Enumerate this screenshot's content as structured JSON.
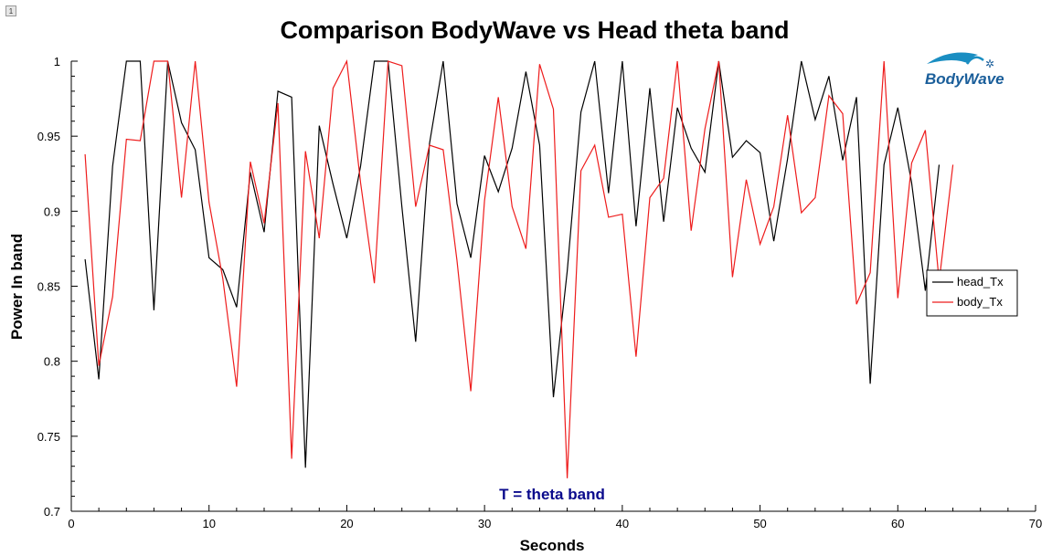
{
  "corner_button": {
    "label": "1"
  },
  "chart_data": {
    "type": "line",
    "title": "Comparison BodyWave vs Head theta band",
    "xlabel": "Seconds",
    "ylabel": "Power In band",
    "xlim": [
      0,
      70
    ],
    "ylim": [
      0.7,
      1.0
    ],
    "x_ticks": [
      0,
      10,
      20,
      30,
      40,
      50,
      60,
      70
    ],
    "y_ticks": [
      0.7,
      0.75,
      0.8,
      0.85,
      0.9,
      0.95,
      1.0
    ],
    "y_tick_labels": [
      "0.7",
      "0.75",
      "0.8",
      "0.85",
      "0.9",
      "0.95",
      "1"
    ],
    "grid": false,
    "legend_position": "right",
    "annotation": "T = theta band",
    "logo": {
      "text": "BodyWave",
      "colors": {
        "body": "#1a5e9a",
        "accent": "#1a8ec2"
      }
    },
    "series": [
      {
        "name": "head_Tx",
        "color": "#000000",
        "x": [
          1,
          2,
          3,
          4,
          5,
          6,
          7,
          8,
          9,
          10,
          11,
          12,
          13,
          14,
          15,
          16,
          17,
          18,
          19,
          20,
          21,
          22,
          23,
          24,
          25,
          26,
          27,
          28,
          29,
          30,
          31,
          32,
          33,
          34,
          35,
          36,
          37,
          38,
          39,
          40,
          41,
          42,
          43,
          44,
          45,
          46,
          47,
          48,
          49,
          50,
          51,
          52,
          53,
          54,
          55,
          56,
          57,
          58,
          59,
          60,
          61,
          62,
          63,
          64
        ],
        "values": [
          0.868,
          0.788,
          0.93,
          1.0,
          1.0,
          0.834,
          1.0,
          0.959,
          0.941,
          0.869,
          0.861,
          0.836,
          0.926,
          0.886,
          0.98,
          0.976,
          0.729,
          0.957,
          0.918,
          0.882,
          0.93,
          1.0,
          1.0,
          0.903,
          0.813,
          0.945,
          1.0,
          0.905,
          0.869,
          0.937,
          0.913,
          0.942,
          0.993,
          0.944,
          0.776,
          0.86,
          0.966,
          1.0,
          0.912,
          1.0,
          0.89,
          0.982,
          0.893,
          0.969,
          0.942,
          0.926,
          1.0,
          0.936,
          0.947,
          0.939,
          0.88,
          0.935,
          1.0,
          0.961,
          0.99,
          0.934,
          0.976,
          0.785,
          0.931,
          0.969,
          0.919,
          0.847,
          0.931,
          null
        ]
      },
      {
        "name": "body_Tx",
        "color": "#ee1c1c",
        "x": [
          1,
          2,
          3,
          4,
          5,
          6,
          7,
          8,
          9,
          10,
          11,
          12,
          13,
          14,
          15,
          16,
          17,
          18,
          19,
          20,
          21,
          22,
          23,
          24,
          25,
          26,
          27,
          28,
          29,
          30,
          31,
          32,
          33,
          34,
          35,
          36,
          37,
          38,
          39,
          40,
          41,
          42,
          43,
          44,
          45,
          46,
          47,
          48,
          49,
          50,
          51,
          52,
          53,
          54,
          55,
          56,
          57,
          58,
          59,
          60,
          61,
          62,
          63,
          64
        ],
        "values": [
          0.938,
          0.797,
          0.843,
          0.948,
          0.947,
          1.0,
          1.0,
          0.909,
          1.0,
          0.906,
          0.855,
          0.783,
          0.933,
          0.892,
          0.972,
          0.735,
          0.94,
          0.882,
          0.982,
          1.0,
          0.919,
          0.852,
          1.0,
          0.997,
          0.903,
          0.944,
          0.941,
          0.867,
          0.78,
          0.907,
          0.976,
          0.903,
          0.875,
          0.998,
          0.968,
          0.722,
          0.927,
          0.944,
          0.896,
          0.898,
          0.803,
          0.909,
          0.922,
          1.0,
          0.887,
          0.955,
          1.0,
          0.856,
          0.921,
          0.878,
          0.903,
          0.964,
          0.899,
          0.909,
          0.977,
          0.965,
          0.838,
          0.859,
          1.0,
          0.842,
          0.932,
          0.954,
          0.853,
          0.931
        ]
      }
    ]
  }
}
